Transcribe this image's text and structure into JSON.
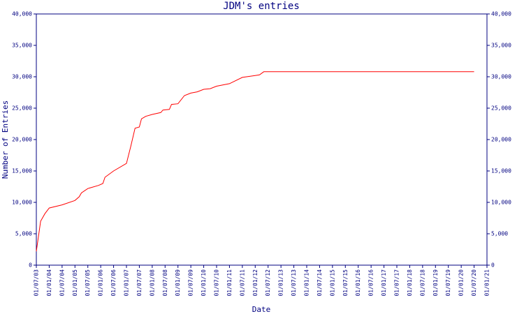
{
  "chart_data": {
    "type": "line",
    "title": "JDM's entries",
    "x_label": "Date",
    "y_label": "Number of Entries",
    "x": [
      "01/07/03",
      "01/09/03",
      "01/11/03",
      "01/01/04",
      "01/07/04",
      "01/01/05",
      "01/03/05",
      "01/04/05",
      "01/07/05",
      "01/12/05",
      "01/02/06",
      "01/03/06",
      "01/07/06",
      "01/01/07",
      "01/03/07",
      "01/05/07",
      "01/07/07",
      "01/08/07",
      "01/10/07",
      "01/01/08",
      "01/05/08",
      "01/06/08",
      "01/09/08",
      "01/10/08",
      "01/01/09",
      "01/04/09",
      "01/07/09",
      "01/10/09",
      "01/01/10",
      "01/04/10",
      "01/07/10",
      "01/01/11",
      "01/07/11",
      "01/01/12",
      "01/03/12",
      "01/05/12",
      "01/07/20"
    ],
    "series": [
      {
        "name": "Entries",
        "color": "#ff0000",
        "values": [
          2200,
          7000,
          8200,
          9100,
          9600,
          10300,
          10900,
          11500,
          12200,
          12700,
          13000,
          14000,
          15000,
          16200,
          18900,
          21800,
          22000,
          23300,
          23700,
          24000,
          24300,
          24700,
          24800,
          25600,
          25700,
          27000,
          27400,
          27600,
          28000,
          28100,
          28500,
          28900,
          29900,
          30200,
          30300,
          30800,
          30800
        ]
      }
    ],
    "xlim": [
      "01/07/03",
      "01/01/21"
    ],
    "xticks": [
      "01/07/03",
      "01/01/04",
      "01/07/04",
      "01/01/05",
      "01/07/05",
      "01/01/06",
      "01/07/06",
      "01/01/07",
      "01/07/07",
      "01/01/08",
      "01/07/08",
      "01/01/09",
      "01/07/09",
      "01/01/10",
      "01/07/10",
      "01/01/11",
      "01/07/11",
      "01/01/12",
      "01/07/12",
      "01/01/13",
      "01/07/13",
      "01/01/14",
      "01/07/14",
      "01/01/15",
      "01/07/15",
      "01/01/16",
      "01/07/16",
      "01/01/17",
      "01/07/17",
      "01/01/18",
      "01/07/18",
      "01/01/19",
      "01/07/19",
      "01/01/20",
      "01/07/20",
      "01/01/21"
    ],
    "ylim": [
      0,
      40000
    ],
    "yticks": [
      0,
      {
        "value": 5000,
        "label": "5,000"
      },
      {
        "value": 10000,
        "label": "10,000"
      },
      {
        "value": 15000,
        "label": "15,000"
      },
      {
        "value": 20000,
        "label": "20,000"
      },
      {
        "value": 25000,
        "label": "25,000"
      },
      {
        "value": 30000,
        "label": "30,000"
      },
      {
        "value": 35000,
        "label": "35,000"
      },
      {
        "value": 40000,
        "label": "40,000"
      }
    ],
    "axis_color": "#000080"
  }
}
